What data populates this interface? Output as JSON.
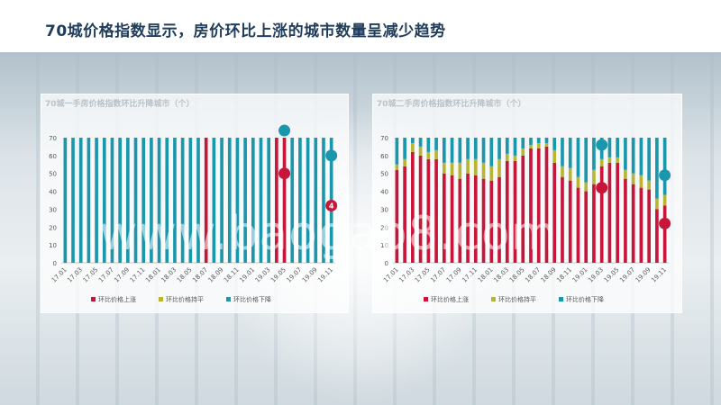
{
  "page": {
    "title": "70城价格指数显示，房价环比上涨的城市数量呈减少趋势"
  },
  "watermark": "www.baogao8.com",
  "colors": {
    "up": "#c8163a",
    "flat": "#b8b532",
    "down": "#1a97ad",
    "title": "#1f3c5a"
  },
  "chart_data": [
    {
      "type": "bar",
      "title": "70城一手房价格指数环比升降城市（个）",
      "categories": [
        "17.01",
        "17.02",
        "17.03",
        "17.04",
        "17.05",
        "17.06",
        "17.07",
        "17.08",
        "17.09",
        "17.10",
        "17.11",
        "17.12",
        "18.01",
        "18.02",
        "18.03",
        "18.04",
        "18.05",
        "18.06",
        "18.07",
        "18.08",
        "18.09",
        "18.10",
        "18.11",
        "18.12",
        "19.01",
        "19.02",
        "19.03",
        "19.04",
        "19.05",
        "19.06",
        "19.07",
        "19.08",
        "19.09",
        "19.10",
        "19.11"
      ],
      "tick_labels": [
        "17.01",
        "17.03",
        "17.05",
        "17.07",
        "17.09",
        "17.11",
        "18.01",
        "18.03",
        "18.05",
        "18.07",
        "18.09",
        "18.11",
        "19.01",
        "19.03",
        "19.05",
        "19.07",
        "19.09",
        "19.11"
      ],
      "series": [
        {
          "name": "环比价格上涨",
          "color": "#c8163a",
          "values": [
            0,
            0,
            0,
            0,
            0,
            0,
            0,
            0,
            0,
            0,
            0,
            0,
            0,
            0,
            0,
            0,
            0,
            0,
            70,
            0,
            0,
            0,
            0,
            0,
            0,
            0,
            0,
            70,
            70,
            0,
            0,
            0,
            0,
            0,
            0
          ]
        },
        {
          "name": "环比价格持平",
          "color": "#b8b532",
          "values": [
            0,
            0,
            0,
            0,
            0,
            0,
            0,
            0,
            0,
            0,
            0,
            0,
            0,
            0,
            0,
            0,
            0,
            0,
            0,
            0,
            0,
            0,
            0,
            0,
            0,
            0,
            0,
            0,
            0,
            0,
            0,
            0,
            0,
            0,
            0
          ]
        },
        {
          "name": "环比价格下降",
          "color": "#1a97ad",
          "values": [
            70,
            70,
            70,
            70,
            70,
            70,
            70,
            70,
            70,
            70,
            70,
            70,
            70,
            70,
            70,
            70,
            70,
            70,
            0,
            70,
            70,
            70,
            70,
            70,
            70,
            70,
            70,
            0,
            0,
            70,
            70,
            70,
            70,
            70,
            70
          ]
        }
      ],
      "markers": [
        {
          "category": "19.05",
          "value": 74,
          "color": "#1a97ad",
          "label": ""
        },
        {
          "category": "19.05",
          "value": 50,
          "color": "#c8163a",
          "label": ""
        },
        {
          "category": "19.11",
          "value": 60,
          "color": "#1a97ad",
          "label": ""
        },
        {
          "category": "19.11",
          "value": 32,
          "color": "#c8163a",
          "label": "4"
        }
      ],
      "ylim": [
        0,
        70
      ],
      "yticks": [
        0,
        10,
        20,
        30,
        40,
        50,
        60,
        70
      ],
      "legend": "bottom"
    },
    {
      "type": "bar",
      "title": "70城二手房价格指数环比升降城市（个）",
      "categories": [
        "17.01",
        "17.02",
        "17.03",
        "17.04",
        "17.05",
        "17.06",
        "17.07",
        "17.08",
        "17.09",
        "17.10",
        "17.11",
        "17.12",
        "18.01",
        "18.02",
        "18.03",
        "18.04",
        "18.05",
        "18.06",
        "18.07",
        "18.08",
        "18.09",
        "18.10",
        "18.11",
        "18.12",
        "19.01",
        "19.02",
        "19.03",
        "19.04",
        "19.05",
        "19.06",
        "19.07",
        "19.08",
        "19.09",
        "19.10",
        "19.11"
      ],
      "tick_labels": [
        "17.01",
        "17.03",
        "17.05",
        "17.07",
        "17.09",
        "17.11",
        "18.01",
        "18.03",
        "18.05",
        "18.07",
        "18.09",
        "18.11",
        "19.01",
        "19.03",
        "19.05",
        "19.07",
        "19.09",
        "19.11"
      ],
      "series": [
        {
          "name": "环比价格上涨",
          "color": "#c8163a",
          "values": [
            52,
            54,
            62,
            60,
            58,
            58,
            50,
            49,
            47,
            50,
            49,
            47,
            46,
            48,
            57,
            57,
            60,
            64,
            64,
            65,
            56,
            48,
            46,
            42,
            40,
            44,
            54,
            56,
            56,
            47,
            44,
            42,
            41,
            30,
            32
          ]
        },
        {
          "name": "环比价格持平",
          "color": "#b8b532",
          "values": [
            3,
            4,
            5,
            5,
            4,
            5,
            6,
            7,
            9,
            8,
            9,
            9,
            8,
            10,
            4,
            3,
            4,
            2,
            3,
            2,
            7,
            6,
            7,
            6,
            5,
            8,
            4,
            3,
            3,
            5,
            6,
            7,
            5,
            6,
            6
          ]
        },
        {
          "name": "环比价格下降",
          "color": "#1a97ad",
          "values": [
            15,
            12,
            3,
            5,
            8,
            7,
            14,
            14,
            14,
            12,
            12,
            14,
            16,
            12,
            9,
            10,
            6,
            4,
            3,
            3,
            7,
            16,
            17,
            22,
            25,
            18,
            12,
            11,
            11,
            18,
            20,
            21,
            24,
            34,
            32
          ]
        }
      ],
      "markers": [
        {
          "category": "19.03",
          "value": 66,
          "color": "#1a97ad",
          "label": ""
        },
        {
          "category": "19.03",
          "value": 42,
          "color": "#c8163a",
          "label": ""
        },
        {
          "category": "19.11",
          "value": 49,
          "color": "#1a97ad",
          "label": ""
        },
        {
          "category": "19.11",
          "value": 22,
          "color": "#c8163a",
          "label": ""
        }
      ],
      "ylim": [
        0,
        70
      ],
      "yticks": [
        0,
        10,
        20,
        30,
        40,
        50,
        60,
        70
      ],
      "legend": "bottom"
    }
  ]
}
